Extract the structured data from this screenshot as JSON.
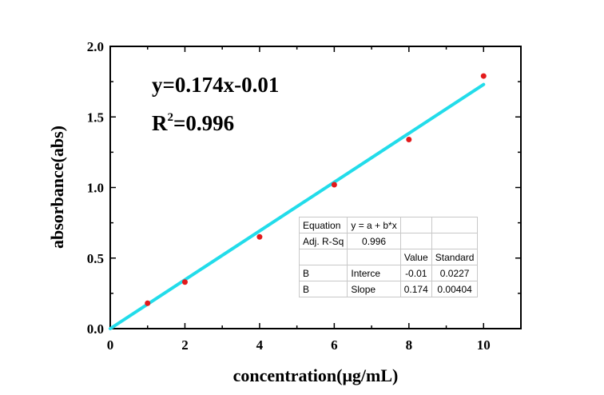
{
  "chart_data": {
    "type": "scatter",
    "xlabel": "concentration(μg/mL)",
    "ylabel": "absorbance(abs)",
    "xlim": [
      0,
      11
    ],
    "ylim": [
      0,
      2.0
    ],
    "x_ticks": [
      "0",
      "2",
      "4",
      "6",
      "8",
      "10"
    ],
    "y_ticks": [
      "0.0",
      "0.5",
      "1.0",
      "1.5",
      "2.0"
    ],
    "grid": false,
    "series": [
      {
        "x": [
          1,
          2,
          4,
          6,
          8,
          10
        ],
        "y": [
          0.18,
          0.33,
          0.65,
          1.02,
          1.34,
          1.79
        ],
        "color": "#e31a1c"
      }
    ],
    "fit_line": {
      "slope": 0.174,
      "intercept": -0.01,
      "x_range": [
        0,
        10
      ],
      "color": "#22dcea"
    },
    "annotations": {
      "equation": "y=0.174x-0.01",
      "r2_base": "R",
      "r2_sup": "2",
      "r2_value": "=0.996"
    }
  },
  "fit_table": {
    "rows": [
      [
        "Equation",
        "y = a + b*x",
        "",
        ""
      ],
      [
        "Adj. R-Sq",
        "0.996",
        "",
        ""
      ],
      [
        "",
        "",
        "Value",
        "Standard"
      ],
      [
        "B",
        "Interce",
        "-0.01",
        "0.0227"
      ],
      [
        "B",
        "Slope",
        "0.174",
        "0.00404"
      ]
    ]
  }
}
